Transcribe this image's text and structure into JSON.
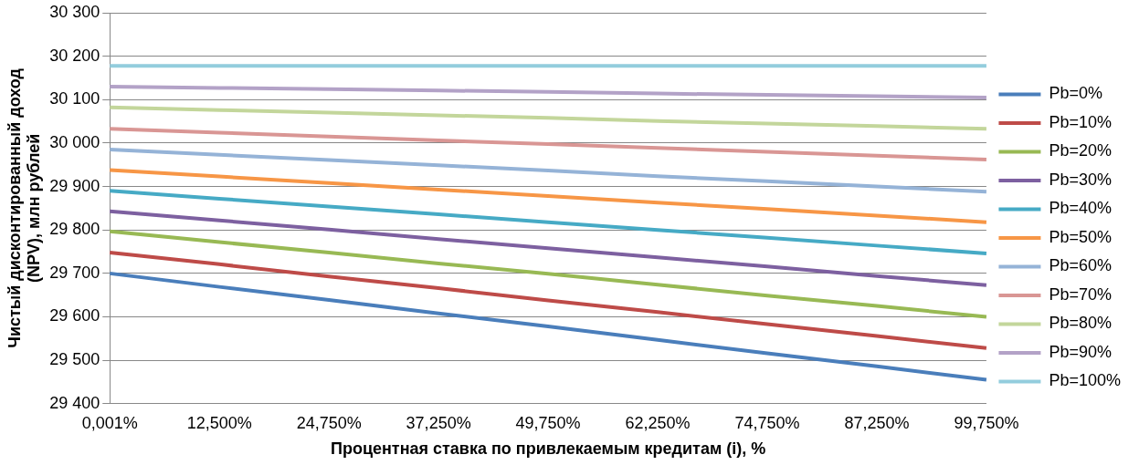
{
  "chart_data": {
    "type": "line",
    "xlabel": "Процентная ставка по привлекаемым кредитам (i), %",
    "ylabel": "Чистый дисконтированный доход (NPV), млн рублей",
    "categories": [
      "0,001%",
      "12,500%",
      "24,750%",
      "37,250%",
      "49,750%",
      "62,250%",
      "74,750%",
      "87,250%",
      "99,750%"
    ],
    "ylim": [
      29400,
      30300
    ],
    "yticks": [
      {
        "value": 29400,
        "label": "29 400"
      },
      {
        "value": 29500,
        "label": "29 500"
      },
      {
        "value": 29600,
        "label": "29 600"
      },
      {
        "value": 29700,
        "label": "29 700"
      },
      {
        "value": 29800,
        "label": "29 800"
      },
      {
        "value": 29900,
        "label": "29 900"
      },
      {
        "value": 30000,
        "label": "30 000"
      },
      {
        "value": 30100,
        "label": "30 100"
      },
      {
        "value": 30200,
        "label": "30 200"
      },
      {
        "value": 30300,
        "label": "30 300"
      }
    ],
    "grid": "y",
    "legend": "right",
    "marker": "none",
    "line_style": "solid",
    "series": [
      {
        "name": "Pb=0%",
        "color": "#4a7ebb",
        "values": [
          29700,
          29669,
          29639,
          29608,
          29578,
          29547,
          29516,
          29486,
          29455
        ]
      },
      {
        "name": "Pb=10%",
        "color": "#be4b48",
        "values": [
          29748,
          29721,
          29693,
          29666,
          29638,
          29611,
          29583,
          29556,
          29528
        ]
      },
      {
        "name": "Pb=20%",
        "color": "#98b954",
        "values": [
          29797,
          29772,
          29748,
          29723,
          29699,
          29674,
          29649,
          29625,
          29600
        ]
      },
      {
        "name": "Pb=30%",
        "color": "#7d60a0",
        "values": [
          29843,
          29822,
          29801,
          29779,
          29758,
          29737,
          29716,
          29694,
          29673
        ]
      },
      {
        "name": "Pb=40%",
        "color": "#46aac5",
        "values": [
          29890,
          29872,
          29854,
          29836,
          29818,
          29800,
          29782,
          29764,
          29746
        ]
      },
      {
        "name": "Pb=50%",
        "color": "#f79646",
        "values": [
          29938,
          29923,
          29908,
          29893,
          29878,
          29863,
          29848,
          29833,
          29818
        ]
      },
      {
        "name": "Pb=60%",
        "color": "#95b3d7",
        "values": [
          29985,
          29973,
          29961,
          29949,
          29937,
          29924,
          29912,
          29900,
          29888
        ]
      },
      {
        "name": "Pb=70%",
        "color": "#d99694",
        "values": [
          30033,
          30024,
          30015,
          30006,
          29998,
          29989,
          29980,
          29971,
          29962
        ]
      },
      {
        "name": "Pb=80%",
        "color": "#c3d69b",
        "values": [
          30082,
          30076,
          30070,
          30064,
          30058,
          30051,
          30045,
          30039,
          30033
        ]
      },
      {
        "name": "Pb=90%",
        "color": "#b3a2c7",
        "values": [
          30130,
          30127,
          30124,
          30121,
          30118,
          30114,
          30111,
          30108,
          30105
        ]
      },
      {
        "name": "Pb=100%",
        "color": "#93cddd",
        "values": [
          30178,
          30178,
          30178,
          30178,
          30178,
          30178,
          30178,
          30178,
          30178
        ]
      }
    ]
  }
}
